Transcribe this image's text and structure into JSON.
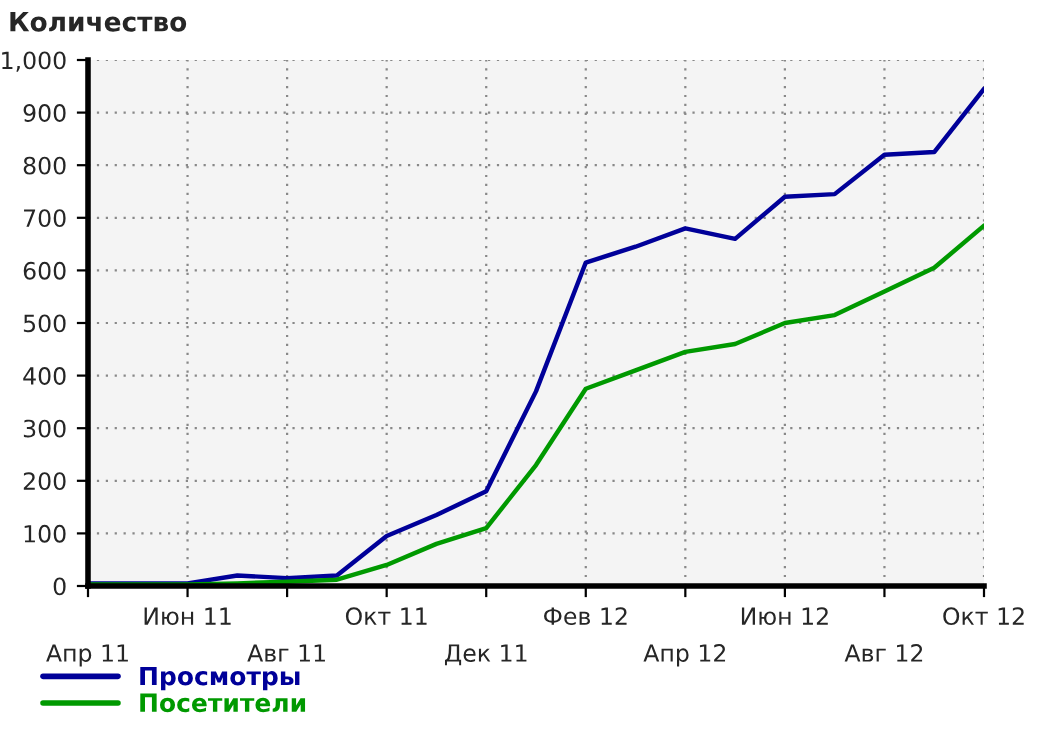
{
  "chart_data": {
    "type": "line",
    "ylabel": "Количество",
    "categories": [
      "Апр 11",
      null,
      "Июн 11",
      null,
      "Авг 11",
      null,
      "Окт 11",
      null,
      "Дек 11",
      null,
      "Фев 12",
      null,
      "Апр 12",
      null,
      "Июн 12",
      null,
      "Авг 12",
      null,
      "Окт 12"
    ],
    "series": [
      {
        "name": "Просмотры",
        "color": "#000099",
        "values": [
          5,
          5,
          5,
          20,
          15,
          20,
          95,
          135,
          180,
          370,
          615,
          645,
          680,
          660,
          740,
          745,
          820,
          825,
          945
        ]
      },
      {
        "name": "Посетители",
        "color": "#009900",
        "values": [
          3,
          3,
          3,
          5,
          8,
          12,
          40,
          80,
          110,
          230,
          375,
          410,
          445,
          460,
          500,
          515,
          560,
          605,
          685
        ]
      }
    ],
    "ylim": [
      0,
      1000
    ],
    "yticks": [
      0,
      100,
      200,
      300,
      400,
      500,
      600,
      700,
      800,
      900,
      {
        "value": 1000,
        "label": "1,000"
      }
    ],
    "grid": true,
    "legend": "bottom left",
    "marker": "none",
    "line_style": "solid"
  }
}
